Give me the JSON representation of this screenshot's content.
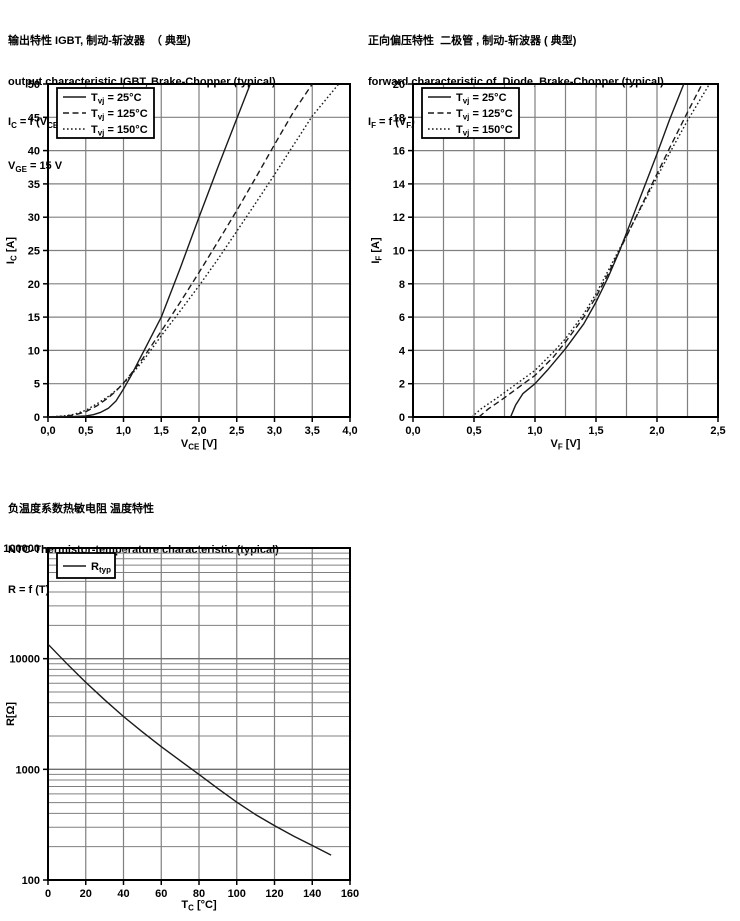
{
  "page": {
    "background": "#ffffff"
  },
  "colors": {
    "curve": "#1a1a1a",
    "grid": "#808080",
    "grid_major": "#6e6e6e",
    "frame": "#000000",
    "text": "#000000",
    "legend_bg": "#ffffff"
  },
  "chart_data": [
    {
      "id": "igbt-output",
      "type": "line",
      "title_cn": "输出特性 IGBT, 制动-斩波器  （ 典型)",
      "title_en": "output characteristic IGBT, Brake-Chopper (typical)",
      "formula": [
        {
          "t": "I"
        },
        {
          "s": "C"
        },
        {
          "t": " = f (V"
        },
        {
          "s": "CE"
        },
        {
          "t": ")"
        }
      ],
      "condition": [
        {
          "t": "V"
        },
        {
          "s": "GE"
        },
        {
          "t": " = 15 V"
        }
      ],
      "xlabel": [
        {
          "t": "V"
        },
        {
          "s": "CE"
        },
        {
          "t": "  [V]"
        }
      ],
      "ylabel": [
        {
          "t": "I"
        },
        {
          "s": "C"
        },
        {
          "t": " [A]"
        }
      ],
      "x": {
        "scale": "linear",
        "min": 0,
        "max": 4,
        "grid_step": 0.5,
        "tick_step": 0.5,
        "tick_labels": [
          "0,0",
          "0,5",
          "1,0",
          "1,5",
          "2,0",
          "2,5",
          "3,0",
          "3,5",
          "4,0"
        ]
      },
      "y": {
        "scale": "linear",
        "min": 0,
        "max": 50,
        "grid_step": 5,
        "tick_step": 5,
        "tick_labels": [
          "0",
          "5",
          "10",
          "15",
          "20",
          "25",
          "30",
          "35",
          "40",
          "45",
          "50"
        ]
      },
      "series": [
        {
          "label": [
            {
              "t": "T"
            },
            {
              "s": "vj"
            },
            {
              "t": " = 25°C"
            }
          ],
          "dash": "solid",
          "points": [
            [
              0,
              0
            ],
            [
              0.3,
              0.05
            ],
            [
              0.5,
              0.15
            ],
            [
              0.6,
              0.35
            ],
            [
              0.7,
              0.7
            ],
            [
              0.8,
              1.3
            ],
            [
              0.9,
              2.4
            ],
            [
              1.0,
              4.2
            ],
            [
              1.1,
              6.2
            ],
            [
              1.2,
              8.4
            ],
            [
              1.3,
              10.6
            ],
            [
              1.4,
              12.8
            ],
            [
              1.5,
              15
            ],
            [
              1.75,
              22.3
            ],
            [
              2.0,
              30
            ],
            [
              2.25,
              37.5
            ],
            [
              2.5,
              44.8
            ],
            [
              2.68,
              50
            ]
          ]
        },
        {
          "label": [
            {
              "t": "T"
            },
            {
              "s": "vj"
            },
            {
              "t": " = 125°C"
            }
          ],
          "dash": "dashed",
          "points": [
            [
              0,
              0
            ],
            [
              0.2,
              0.1
            ],
            [
              0.35,
              0.3
            ],
            [
              0.5,
              0.8
            ],
            [
              0.65,
              1.7
            ],
            [
              0.8,
              2.9
            ],
            [
              0.9,
              3.9
            ],
            [
              1.0,
              5.1
            ],
            [
              1.1,
              6.5
            ],
            [
              1.25,
              8.7
            ],
            [
              1.5,
              12.9
            ],
            [
              1.75,
              17.2
            ],
            [
              2.0,
              21.7
            ],
            [
              2.25,
              26.3
            ],
            [
              2.5,
              31
            ],
            [
              2.75,
              35.9
            ],
            [
              3.0,
              40.9
            ],
            [
              3.25,
              45.8
            ],
            [
              3.5,
              50
            ]
          ]
        },
        {
          "label": [
            {
              "t": "T"
            },
            {
              "s": "vj"
            },
            {
              "t": " = 150°C"
            }
          ],
          "dash": "dotted",
          "points": [
            [
              0,
              0
            ],
            [
              0.2,
              0.15
            ],
            [
              0.35,
              0.4
            ],
            [
              0.5,
              1.0
            ],
            [
              0.65,
              2.0
            ],
            [
              0.8,
              3.1
            ],
            [
              0.9,
              4.0
            ],
            [
              1.0,
              5.0
            ],
            [
              1.1,
              6.3
            ],
            [
              1.25,
              8.3
            ],
            [
              1.5,
              12.2
            ],
            [
              1.75,
              15.9
            ],
            [
              2.0,
              19.7
            ],
            [
              2.25,
              23.7
            ],
            [
              2.5,
              27.9
            ],
            [
              2.75,
              32.1
            ],
            [
              3.0,
              36.4
            ],
            [
              3.25,
              40.8
            ],
            [
              3.5,
              45.2
            ],
            [
              3.85,
              50
            ]
          ]
        }
      ]
    },
    {
      "id": "diode-forward",
      "type": "line",
      "title_cn": "正向偏压特性  二极管 , 制动-斩波器 ( 典型)",
      "title_en": "forward characteristic of  Diode, Brake-Chopper (typical)",
      "formula": [
        {
          "t": "I"
        },
        {
          "s": "F"
        },
        {
          "t": " = f (V"
        },
        {
          "s": "F"
        },
        {
          "t": ")"
        }
      ],
      "condition": null,
      "xlabel": [
        {
          "t": "V"
        },
        {
          "s": "F"
        },
        {
          "t": " [V]"
        }
      ],
      "ylabel": [
        {
          "t": "I"
        },
        {
          "s": "F"
        },
        {
          "t": " [A]"
        }
      ],
      "x": {
        "scale": "linear",
        "min": 0,
        "max": 2.5,
        "grid_step": 0.25,
        "tick_step": 0.5,
        "tick_labels": [
          "0,0",
          "0,5",
          "1,0",
          "1,5",
          "2,0",
          "2,5"
        ]
      },
      "y": {
        "scale": "linear",
        "min": 0,
        "max": 20,
        "grid_step": 2,
        "tick_step": 2,
        "tick_labels": [
          "0",
          "2",
          "4",
          "6",
          "8",
          "10",
          "12",
          "14",
          "16",
          "18",
          "20"
        ]
      },
      "series": [
        {
          "label": [
            {
              "t": "T"
            },
            {
              "s": "vj"
            },
            {
              "t": " = 25°C"
            }
          ],
          "dash": "solid",
          "points": [
            [
              0.8,
              0
            ],
            [
              0.84,
              0.7
            ],
            [
              0.9,
              1.4
            ],
            [
              1.0,
              2.0
            ],
            [
              1.1,
              2.8
            ],
            [
              1.25,
              4.1
            ],
            [
              1.4,
              5.6
            ],
            [
              1.5,
              6.9
            ],
            [
              1.6,
              8.4
            ],
            [
              1.7,
              10.1
            ],
            [
              1.8,
              12.0
            ],
            [
              1.9,
              13.9
            ],
            [
              2.0,
              15.8
            ],
            [
              2.1,
              17.8
            ],
            [
              2.22,
              20
            ]
          ]
        },
        {
          "label": [
            {
              "t": "T"
            },
            {
              "s": "vj"
            },
            {
              "t": " = 125°C"
            }
          ],
          "dash": "dashed",
          "points": [
            [
              0.54,
              0
            ],
            [
              0.62,
              0.5
            ],
            [
              0.72,
              1.0
            ],
            [
              0.85,
              1.7
            ],
            [
              1.0,
              2.5
            ],
            [
              1.15,
              3.6
            ],
            [
              1.25,
              4.5
            ],
            [
              1.4,
              6.0
            ],
            [
              1.5,
              7.2
            ],
            [
              1.6,
              8.6
            ],
            [
              1.7,
              10.1
            ],
            [
              1.8,
              11.6
            ],
            [
              1.9,
              13.1
            ],
            [
              2.0,
              14.6
            ],
            [
              2.1,
              16.1
            ],
            [
              2.25,
              18.3
            ],
            [
              2.37,
              20
            ]
          ]
        },
        {
          "label": [
            {
              "t": "T"
            },
            {
              "s": "vj"
            },
            {
              "t": " = 150°C"
            }
          ],
          "dash": "dotted",
          "points": [
            [
              0.48,
              0
            ],
            [
              0.56,
              0.5
            ],
            [
              0.68,
              1.1
            ],
            [
              0.85,
              2.0
            ],
            [
              1.0,
              2.8
            ],
            [
              1.15,
              3.9
            ],
            [
              1.25,
              4.7
            ],
            [
              1.4,
              6.2
            ],
            [
              1.5,
              7.4
            ],
            [
              1.6,
              8.8
            ],
            [
              1.7,
              10.2
            ],
            [
              1.8,
              11.6
            ],
            [
              1.9,
              13.0
            ],
            [
              2.0,
              14.4
            ],
            [
              2.1,
              15.8
            ],
            [
              2.25,
              17.8
            ],
            [
              2.43,
              20
            ]
          ]
        }
      ]
    },
    {
      "id": "ntc-thermistor",
      "type": "line",
      "title_cn": "负温度系数热敏电阻 温度特性",
      "title_en": "NTC-Thermistor-temperature characteristic (typical)",
      "formula": [
        {
          "t": "R = f (T)"
        }
      ],
      "condition": null,
      "xlabel": [
        {
          "t": "T"
        },
        {
          "s": "C"
        },
        {
          "t": " [°C]"
        }
      ],
      "ylabel": [
        {
          "t": "R[Ω]"
        }
      ],
      "x": {
        "scale": "linear",
        "min": 0,
        "max": 160,
        "grid_step": 20,
        "tick_step": 20,
        "tick_labels": [
          "0",
          "20",
          "40",
          "60",
          "80",
          "100",
          "120",
          "140",
          "160"
        ]
      },
      "y": {
        "scale": "log",
        "min": 100,
        "max": 100000,
        "tick_values": [
          100,
          1000,
          10000,
          100000
        ],
        "tick_labels": [
          "100",
          "1000",
          "10000",
          "100000"
        ]
      },
      "series": [
        {
          "label": [
            {
              "t": "R"
            },
            {
              "s": "typ"
            }
          ],
          "dash": "solid",
          "points": [
            [
              0,
              13500
            ],
            [
              10,
              9000
            ],
            [
              20,
              6100
            ],
            [
              30,
              4250
            ],
            [
              40,
              3000
            ],
            [
              50,
              2180
            ],
            [
              60,
              1600
            ],
            [
              70,
              1200
            ],
            [
              80,
              900
            ],
            [
              90,
              670
            ],
            [
              100,
              505
            ],
            [
              110,
              390
            ],
            [
              120,
              310
            ],
            [
              130,
              250
            ],
            [
              140,
              205
            ],
            [
              150,
              168
            ]
          ]
        }
      ]
    }
  ]
}
